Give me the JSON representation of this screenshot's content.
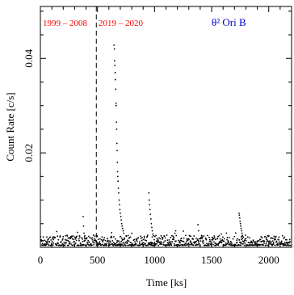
{
  "chart_data": {
    "type": "scatter",
    "source_label": "θ² Ori B",
    "xlabel": "Time [ks]",
    "ylabel": "Count Rate [c/s]",
    "xlim": [
      0,
      2200
    ],
    "ylim": [
      0,
      0.051
    ],
    "x_ticks": [
      0,
      500,
      1000,
      1500,
      2000
    ],
    "y_ticks": [
      0.02,
      0.04
    ],
    "divider_x": 490,
    "era_labels": [
      "1999 – 2008",
      "2019 – 2020"
    ],
    "colors": {
      "era": "#ff0000",
      "source": "#0000cc",
      "points": "#000000"
    },
    "flare_points": [
      [
        375,
        0.0065
      ],
      [
        378,
        0.0045
      ],
      [
        382,
        0.003
      ],
      [
        386,
        0.0022
      ],
      [
        645,
        0.0428
      ],
      [
        648,
        0.042
      ],
      [
        650,
        0.0395
      ],
      [
        652,
        0.0385
      ],
      [
        655,
        0.037
      ],
      [
        657,
        0.0355
      ],
      [
        660,
        0.0335
      ],
      [
        662,
        0.0305
      ],
      [
        664,
        0.03
      ],
      [
        666,
        0.0265
      ],
      [
        668,
        0.025
      ],
      [
        670,
        0.022
      ],
      [
        672,
        0.0205
      ],
      [
        674,
        0.018
      ],
      [
        676,
        0.016
      ],
      [
        678,
        0.015
      ],
      [
        680,
        0.014
      ],
      [
        683,
        0.0125
      ],
      [
        686,
        0.0115
      ],
      [
        690,
        0.01
      ],
      [
        693,
        0.009
      ],
      [
        696,
        0.008
      ],
      [
        700,
        0.0072
      ],
      [
        704,
        0.0065
      ],
      [
        708,
        0.0058
      ],
      [
        712,
        0.005
      ],
      [
        716,
        0.0045
      ],
      [
        720,
        0.004
      ],
      [
        725,
        0.0035
      ],
      [
        730,
        0.003
      ],
      [
        950,
        0.0115
      ],
      [
        953,
        0.01
      ],
      [
        956,
        0.009
      ],
      [
        960,
        0.008
      ],
      [
        964,
        0.007
      ],
      [
        968,
        0.006
      ],
      [
        972,
        0.005
      ],
      [
        976,
        0.0042
      ],
      [
        980,
        0.0035
      ],
      [
        985,
        0.0028
      ],
      [
        1380,
        0.0048
      ],
      [
        1385,
        0.0035
      ],
      [
        1740,
        0.0072
      ],
      [
        1743,
        0.0068
      ],
      [
        1746,
        0.0062
      ],
      [
        1749,
        0.0055
      ],
      [
        1752,
        0.005
      ],
      [
        1755,
        0.0045
      ],
      [
        1758,
        0.004
      ],
      [
        1762,
        0.0035
      ],
      [
        1766,
        0.003
      ],
      [
        1770,
        0.0025
      ]
    ]
  }
}
